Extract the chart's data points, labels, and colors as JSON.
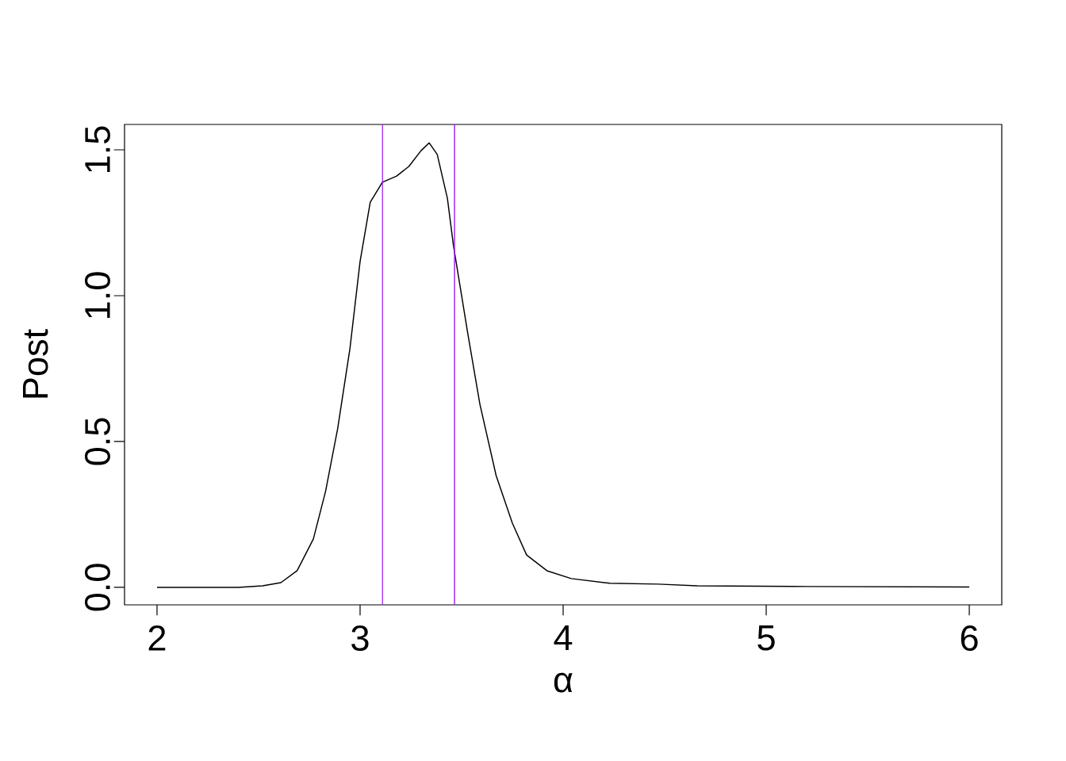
{
  "chart_data": {
    "type": "line",
    "xlabel": "α",
    "ylabel": "Post",
    "x": [
      2.0,
      2.4,
      2.52,
      2.61,
      2.69,
      2.77,
      2.83,
      2.89,
      2.95,
      3.0,
      3.05,
      3.11,
      3.18,
      3.24,
      3.3,
      3.34,
      3.38,
      3.43,
      3.46,
      3.53,
      3.59,
      3.67,
      3.75,
      3.82,
      3.92,
      4.04,
      4.23,
      4.47,
      4.66,
      5.13,
      6.0
    ],
    "series": [
      {
        "color": "#000000",
        "values": [
          0.0,
          0.0,
          0.005,
          0.016,
          0.057,
          0.166,
          0.329,
          0.546,
          0.818,
          1.117,
          1.32,
          1.389,
          1.41,
          1.443,
          1.497,
          1.524,
          1.484,
          1.334,
          1.171,
          0.872,
          0.628,
          0.383,
          0.22,
          0.111,
          0.057,
          0.03,
          0.014,
          0.011,
          0.005,
          0.003,
          0.001
        ]
      }
    ],
    "xlim": [
      1.84,
      6.16
    ],
    "ylim": [
      -0.06,
      1.587
    ],
    "xticks": [
      2,
      3,
      4,
      5,
      6
    ],
    "yticks": [
      {
        "value": 0,
        "label": "0.0"
      },
      {
        "value": 0.5,
        "label": "0.5"
      },
      {
        "value": 1,
        "label": "1.0"
      },
      {
        "value": 1.5,
        "label": "1.5"
      }
    ],
    "ref_lines": [
      {
        "axis": "x",
        "value": 3.11,
        "color": "#a020f0"
      },
      {
        "axis": "x",
        "value": 3.465,
        "color": "#a020f0"
      }
    ],
    "grid": false
  }
}
